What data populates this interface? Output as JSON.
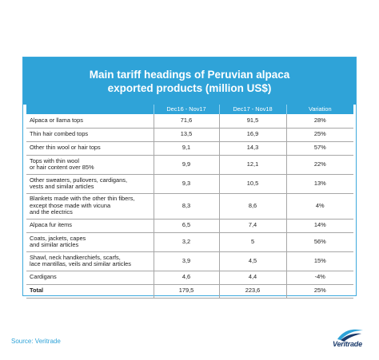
{
  "chart_data": {
    "type": "table",
    "title_lines": [
      "Main tariff headings of Peruvian alpaca",
      "exported products (million US$)"
    ],
    "columns": [
      "",
      "Dec16 - Nov17",
      "Dec17 - Nov18",
      "Variation"
    ],
    "rows": [
      {
        "name_lines": [
          "Alpaca or llama tops"
        ],
        "v1": "71,6",
        "v2": "91,5",
        "var": "28%"
      },
      {
        "name_lines": [
          "Thin hair combed tops"
        ],
        "v1": "13,5",
        "v2": "16,9",
        "var": "25%"
      },
      {
        "name_lines": [
          "Other thin wool or hair tops"
        ],
        "v1": "9,1",
        "v2": "14,3",
        "var": "57%"
      },
      {
        "name_lines": [
          "Tops with thin wool",
          "or hair content over 85%"
        ],
        "v1": "9,9",
        "v2": "12,1",
        "var": "22%"
      },
      {
        "name_lines": [
          "Other sweaters, pullovers, cardigans,",
          "vests and similar articles"
        ],
        "v1": "9,3",
        "v2": "10,5",
        "var": "13%"
      },
      {
        "name_lines": [
          "Blankets made with the other thin fibers,",
          "except those made with vicuna",
          "and the electrics"
        ],
        "v1": "8,3",
        "v2": "8,6",
        "var": "4%"
      },
      {
        "name_lines": [
          "Alpaca fur items"
        ],
        "v1": "6,5",
        "v2": "7,4",
        "var": "14%"
      },
      {
        "name_lines": [
          "Coats, jackets, capes",
          "and similar articles"
        ],
        "v1": "3,2",
        "v2": "5",
        "var": "56%"
      },
      {
        "name_lines": [
          "Shawl, neck handkerchiefs, scarfs,",
          "lace mantillas, veils and similar articles"
        ],
        "v1": "3,9",
        "v2": "4,5",
        "var": "15%"
      },
      {
        "name_lines": [
          "Cardigans"
        ],
        "v1": "4,6",
        "v2": "4,4",
        "var": "-4%"
      },
      {
        "name_lines": [
          "Total"
        ],
        "v1": "179,5",
        "v2": "223,6",
        "var": "25%",
        "total": true
      }
    ]
  },
  "source": "Source: Veritrade",
  "logo_text": "Veritrade",
  "colors": {
    "accent": "#2fa3d8",
    "logo": "#1a3a6b"
  }
}
